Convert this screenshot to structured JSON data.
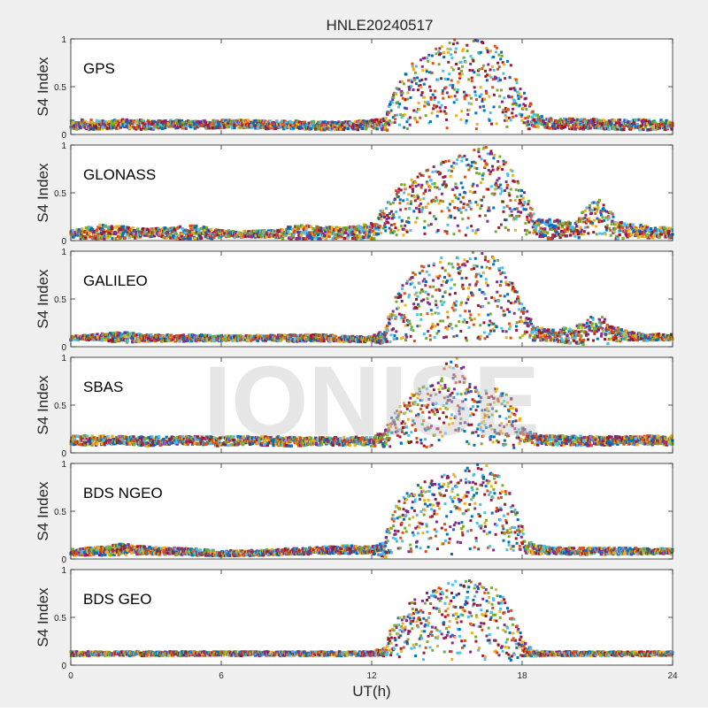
{
  "figure": {
    "title": "HNLE20240517",
    "watermark": "IONISE"
  },
  "chart_data": {
    "type": "scatter",
    "title": "HNLE20240517",
    "xlabel": "UT(h)",
    "ylabel": "S4 Index",
    "xlim": [
      0,
      24
    ],
    "ylim": [
      0,
      1
    ],
    "x_ticks": [
      "0",
      "6",
      "12",
      "18",
      "24"
    ],
    "y_ticks": [
      "0",
      "0.5",
      "1"
    ],
    "grid": false,
    "legend": "none",
    "series_colors": [
      "#0072BD",
      "#D95319",
      "#EDB120",
      "#7E2F8E",
      "#77AC30",
      "#4DBEEE",
      "#A2142F"
    ],
    "panels": [
      {
        "name": "GPS",
        "x": [
          0,
          1,
          2,
          3,
          4,
          5,
          6,
          7,
          8,
          9,
          10,
          11,
          12,
          12.5,
          13,
          13.5,
          14,
          14.5,
          15,
          15.5,
          16,
          16.5,
          17,
          17.5,
          18,
          18.5,
          19,
          20,
          21,
          22,
          23,
          24
        ],
        "y": [
          0.1,
          0.1,
          0.11,
          0.1,
          0.11,
          0.1,
          0.11,
          0.11,
          0.1,
          0.1,
          0.09,
          0.09,
          0.1,
          0.11,
          0.22,
          0.45,
          0.55,
          0.6,
          0.62,
          0.68,
          0.72,
          0.7,
          0.66,
          0.5,
          0.28,
          0.15,
          0.12,
          0.11,
          0.11,
          0.1,
          0.1,
          0.1
        ],
        "y_max": [
          0.18,
          0.17,
          0.18,
          0.17,
          0.17,
          0.16,
          0.17,
          0.17,
          0.16,
          0.16,
          0.15,
          0.15,
          0.17,
          0.2,
          0.5,
          0.72,
          0.82,
          0.9,
          0.98,
          1.0,
          1.0,
          0.96,
          0.92,
          0.78,
          0.48,
          0.25,
          0.2,
          0.19,
          0.18,
          0.18,
          0.18,
          0.17
        ]
      },
      {
        "name": "GLONASS",
        "x": [
          0,
          1,
          2,
          3,
          4,
          5,
          6,
          7,
          8,
          9,
          10,
          11,
          12,
          12.5,
          13,
          13.5,
          14,
          14.5,
          15,
          15.5,
          16,
          16.5,
          17,
          17.5,
          18,
          18.5,
          19,
          20,
          21,
          22,
          23,
          24
        ],
        "y": [
          0.07,
          0.08,
          0.08,
          0.08,
          0.08,
          0.08,
          0.07,
          0.07,
          0.07,
          0.08,
          0.08,
          0.08,
          0.09,
          0.15,
          0.3,
          0.4,
          0.42,
          0.45,
          0.48,
          0.52,
          0.55,
          0.58,
          0.6,
          0.45,
          0.25,
          0.15,
          0.12,
          0.12,
          0.12,
          0.1,
          0.09,
          0.08
        ],
        "y_max": [
          0.12,
          0.2,
          0.18,
          0.14,
          0.16,
          0.2,
          0.12,
          0.12,
          0.12,
          0.2,
          0.18,
          0.16,
          0.22,
          0.35,
          0.55,
          0.65,
          0.72,
          0.78,
          0.85,
          0.9,
          0.95,
          0.98,
          1.0,
          0.8,
          0.55,
          0.3,
          0.28,
          0.22,
          0.45,
          0.22,
          0.18,
          0.15
        ]
      },
      {
        "name": "GALILEO",
        "x": [
          0,
          1,
          2,
          3,
          4,
          5,
          6,
          7,
          8,
          9,
          10,
          11,
          12,
          12.5,
          13,
          13.5,
          14,
          14.5,
          15,
          15.5,
          16,
          16.5,
          17,
          17.5,
          18,
          18.5,
          19,
          20,
          21,
          22,
          23,
          24
        ],
        "y": [
          0.09,
          0.1,
          0.1,
          0.09,
          0.09,
          0.09,
          0.09,
          0.09,
          0.09,
          0.09,
          0.09,
          0.08,
          0.08,
          0.1,
          0.18,
          0.4,
          0.48,
          0.52,
          0.55,
          0.58,
          0.6,
          0.58,
          0.55,
          0.4,
          0.22,
          0.14,
          0.12,
          0.12,
          0.14,
          0.12,
          0.1,
          0.1
        ],
        "y_max": [
          0.12,
          0.14,
          0.18,
          0.14,
          0.14,
          0.14,
          0.13,
          0.13,
          0.13,
          0.14,
          0.14,
          0.12,
          0.12,
          0.2,
          0.55,
          0.75,
          0.85,
          0.92,
          0.95,
          0.98,
          1.0,
          0.98,
          0.95,
          0.75,
          0.45,
          0.25,
          0.2,
          0.25,
          0.35,
          0.2,
          0.15,
          0.14
        ]
      },
      {
        "name": "SBAS",
        "x": [
          0,
          1,
          2,
          3,
          4,
          5,
          6,
          7,
          8,
          9,
          10,
          11,
          12,
          12.5,
          13,
          13.5,
          14,
          14.5,
          15,
          15.5,
          16,
          16.5,
          17,
          17.5,
          18,
          18.5,
          19,
          20,
          21,
          22,
          23,
          24
        ],
        "y": [
          0.13,
          0.13,
          0.13,
          0.12,
          0.13,
          0.13,
          0.12,
          0.13,
          0.12,
          0.12,
          0.12,
          0.12,
          0.12,
          0.14,
          0.25,
          0.35,
          0.42,
          0.45,
          0.48,
          0.5,
          0.45,
          0.42,
          0.5,
          0.5,
          0.2,
          0.14,
          0.13,
          0.13,
          0.12,
          0.13,
          0.13,
          0.13
        ],
        "y_max": [
          0.2,
          0.2,
          0.19,
          0.19,
          0.19,
          0.19,
          0.19,
          0.19,
          0.19,
          0.19,
          0.18,
          0.18,
          0.19,
          0.25,
          0.45,
          0.6,
          0.7,
          0.72,
          0.95,
          1.0,
          0.7,
          0.65,
          0.68,
          0.65,
          0.3,
          0.22,
          0.2,
          0.2,
          0.19,
          0.19,
          0.2,
          0.2
        ]
      },
      {
        "name": "BDS NGEO",
        "x": [
          0,
          1,
          2,
          3,
          4,
          5,
          6,
          7,
          8,
          9,
          10,
          11,
          12,
          12.5,
          13,
          13.5,
          14,
          14.5,
          15,
          15.5,
          16,
          16.5,
          17,
          17.5,
          18,
          18.5,
          19,
          20,
          21,
          22,
          23,
          24
        ],
        "y": [
          0.07,
          0.08,
          0.1,
          0.09,
          0.08,
          0.07,
          0.06,
          0.06,
          0.07,
          0.08,
          0.09,
          0.1,
          0.09,
          0.1,
          0.25,
          0.45,
          0.5,
          0.52,
          0.55,
          0.58,
          0.6,
          0.58,
          0.55,
          0.4,
          0.18,
          0.1,
          0.09,
          0.08,
          0.08,
          0.08,
          0.08,
          0.08
        ],
        "y_max": [
          0.12,
          0.14,
          0.18,
          0.15,
          0.13,
          0.12,
          0.1,
          0.1,
          0.11,
          0.13,
          0.14,
          0.16,
          0.14,
          0.22,
          0.6,
          0.72,
          0.8,
          0.85,
          0.9,
          0.92,
          0.98,
          1.0,
          0.92,
          0.7,
          0.35,
          0.18,
          0.14,
          0.13,
          0.13,
          0.13,
          0.12,
          0.12
        ]
      },
      {
        "name": "BDS GEO",
        "x": [
          0,
          1,
          2,
          3,
          4,
          5,
          6,
          7,
          8,
          9,
          10,
          11,
          12,
          12.5,
          13,
          13.5,
          14,
          14.5,
          15,
          15.5,
          16,
          16.5,
          17,
          17.5,
          18,
          18.5,
          19,
          20,
          21,
          22,
          23,
          24
        ],
        "y": [
          0.12,
          0.12,
          0.12,
          0.12,
          0.12,
          0.12,
          0.12,
          0.12,
          0.12,
          0.12,
          0.12,
          0.12,
          0.12,
          0.14,
          0.3,
          0.42,
          0.48,
          0.52,
          0.55,
          0.58,
          0.58,
          0.56,
          0.52,
          0.4,
          0.18,
          0.12,
          0.12,
          0.12,
          0.12,
          0.12,
          0.12,
          0.12
        ],
        "y_max": [
          0.15,
          0.15,
          0.15,
          0.15,
          0.15,
          0.15,
          0.15,
          0.15,
          0.15,
          0.15,
          0.15,
          0.15,
          0.15,
          0.2,
          0.55,
          0.65,
          0.75,
          0.8,
          0.85,
          0.9,
          0.88,
          0.85,
          0.8,
          0.62,
          0.3,
          0.16,
          0.15,
          0.15,
          0.15,
          0.15,
          0.15,
          0.15
        ]
      }
    ]
  }
}
